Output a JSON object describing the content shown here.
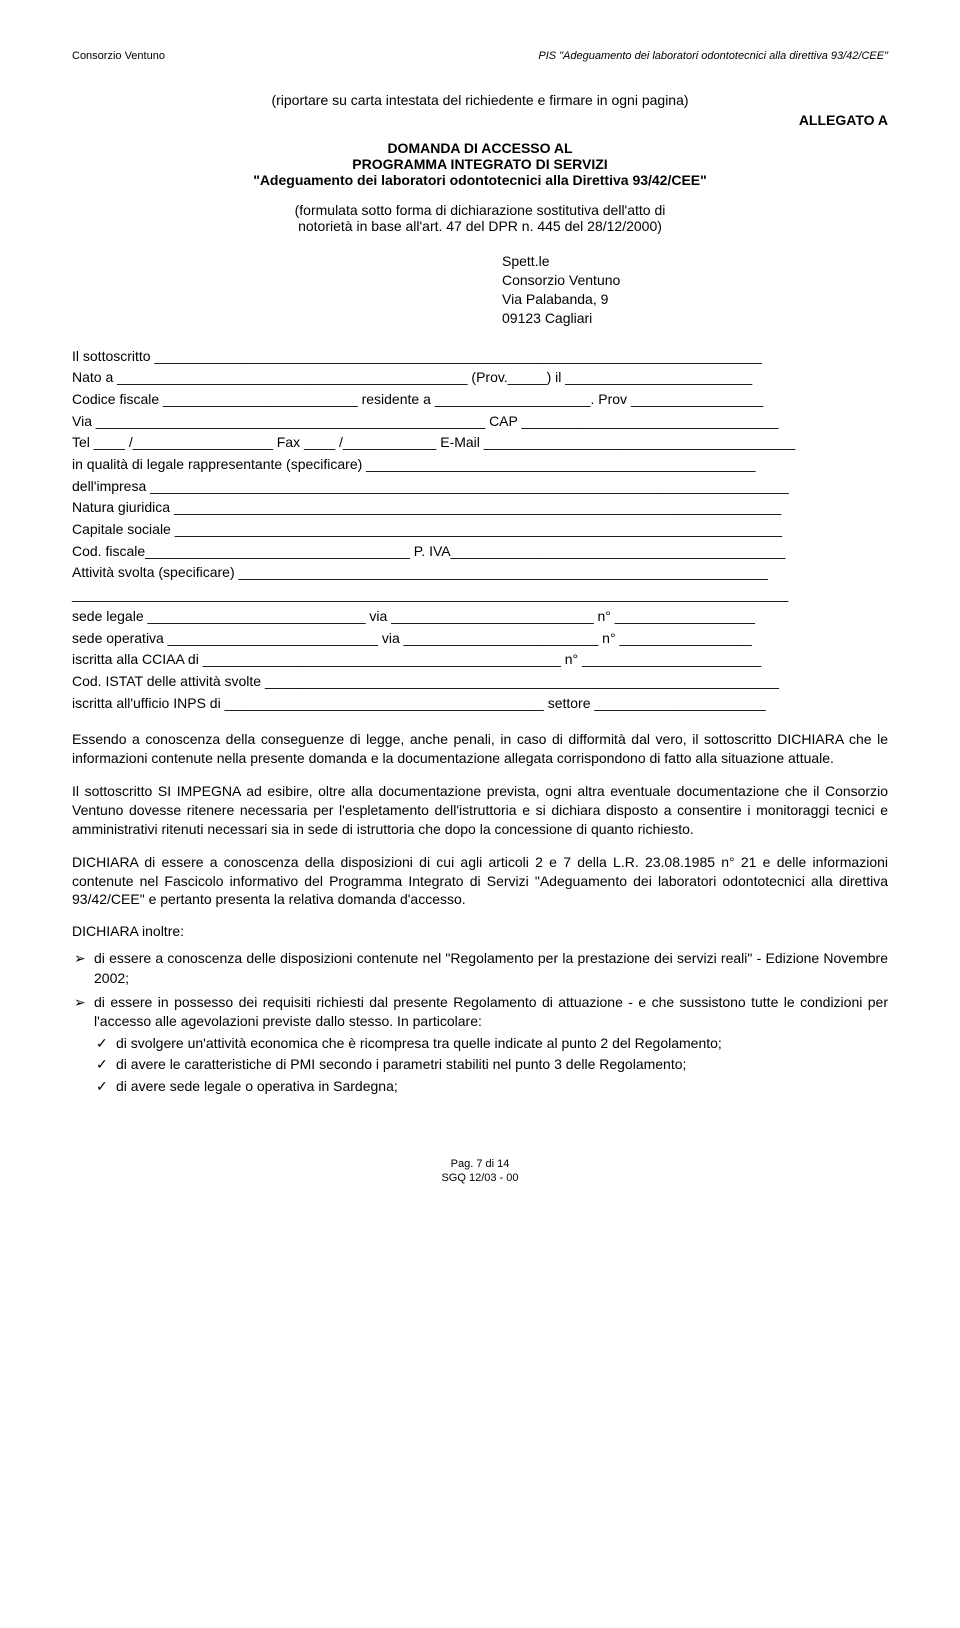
{
  "header": {
    "left": "Consorzio Ventuno",
    "right": "PIS \"Adeguamento dei laboratori odontotecnici alla direttiva 93/42/CEE\""
  },
  "instruction": "(riportare su carta intestata del richiedente e firmare in ogni pagina)",
  "allegato": "ALLEGATO A",
  "title": {
    "line1": "DOMANDA DI ACCESSO AL",
    "line2": "PROGRAMMA INTEGRATO DI SERVIZI",
    "line3": "\"Adeguamento dei laboratori odontotecnici alla Direttiva 93/42/CEE\""
  },
  "formula": {
    "line1": "(formulata sotto forma di dichiarazione sostitutiva dell'atto di",
    "line2": "notorietà in base all'art. 47 del DPR n. 445 del 28/12/2000)"
  },
  "address": {
    "l1": "Spett.le",
    "l2": "Consorzio Ventuno",
    "l3": "Via Palabanda, 9",
    "l4": "09123 Cagliari"
  },
  "form": {
    "l1": "Il sottoscritto ______________________________________________________________________________",
    "l2": "Nato a _____________________________________________ (Prov._____) il ________________________",
    "l3": "Codice fiscale _________________________ residente a ____________________. Prov _________________",
    "l4": "Via __________________________________________________ CAP _________________________________",
    "l5": "Tel ____ /__________________ Fax ____ /____________ E-Mail ________________________________________",
    "l6": "in qualità di legale rappresentante (specificare) __________________________________________________",
    "l7": "dell'impresa __________________________________________________________________________________",
    "l8": "Natura giuridica ______________________________________________________________________________",
    "l9": "Capitale sociale ______________________________________________________________________________",
    "l10": "Cod. fiscale__________________________________ P. IVA___________________________________________",
    "l11": "Attività svolta (specificare) ____________________________________________________________________",
    "l12": "____________________________________________________________________________________________",
    "l13": "sede legale ____________________________ via __________________________ n° __________________",
    "l14": "sede operativa ___________________________ via _________________________ n° _________________",
    "l15": "iscritta alla CCIAA di ______________________________________________ n° _______________________",
    "l16": "Cod. ISTAT delle attività svolte __________________________________________________________________",
    "l17": "iscritta all'ufficio INPS di _________________________________________ settore ______________________"
  },
  "para1": "Essendo a conoscenza della conseguenze di legge, anche penali, in caso di difformità dal vero, il sottoscritto DICHIARA che le informazioni contenute nella presente domanda e la documentazione allegata corrispondono di fatto alla situazione attuale.",
  "para2": "Il sottoscritto SI IMPEGNA ad esibire, oltre alla documentazione prevista, ogni altra eventuale documentazione che il Consorzio Ventuno dovesse ritenere necessaria per l'espletamento dell'istruttoria e si dichiara disposto a consentire i monitoraggi tecnici e amministrativi ritenuti necessari sia in sede di istruttoria che dopo la concessione di quanto richiesto.",
  "para3": "DICHIARA di essere a conoscenza della disposizioni di cui agli articoli 2 e 7 della L.R. 23.08.1985 n° 21 e delle informazioni contenute nel Fascicolo informativo del Programma Integrato di Servizi \"Adeguamento dei laboratori odontotecnici alla direttiva 93/42/CEE\" e pertanto presenta la relativa domanda d'accesso.",
  "declare": "DICHIARA inoltre:",
  "bullets": {
    "b1": "di essere a conoscenza delle disposizioni contenute nel \"Regolamento per la prestazione dei servizi reali\" - Edizione Novembre 2002;",
    "b2": "di essere in possesso dei requisiti richiesti dal presente Regolamento di attuazione - e che sussistono tutte le condizioni per l'accesso alle agevolazioni previste dallo stesso. In particolare:"
  },
  "checks": {
    "c1": "di svolgere un'attività economica che è ricompresa tra quelle indicate al punto 2 del Regolamento;",
    "c2": "di avere le caratteristiche di PMI secondo i parametri stabiliti nel punto 3 delle Regolamento;",
    "c3": "di avere sede legale o operativa in Sardegna;"
  },
  "footer": {
    "l1": "Pag. 7 di 14",
    "l2": "SGQ 12/03 - 00"
  }
}
